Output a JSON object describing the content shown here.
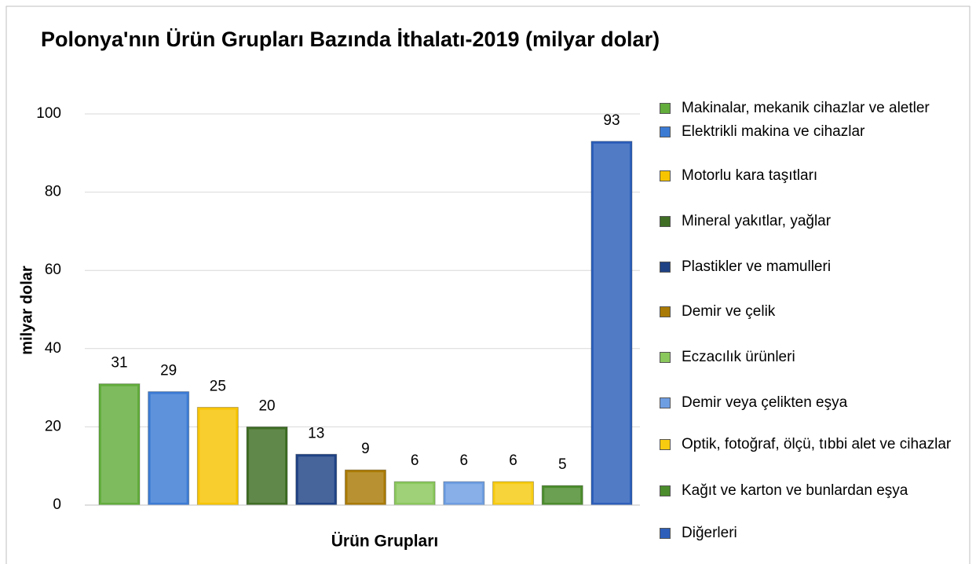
{
  "chart_data": {
    "type": "bar",
    "title": "Polonya'nın Ürün Grupları Bazında İthalatı-2019 (milyar dolar)",
    "x_label": "Ürün Grupları",
    "y_label": "milyar dolar",
    "categories": [
      "Makinalar, mekanik cihazlar ve aletler",
      "Elektrikli makina ve cihazlar",
      "Motorlu kara taşıtları",
      "Mineral yakıtlar, yağlar",
      "Plastikler ve mamulleri",
      "Demir ve çelik",
      "Eczacılık ürünleri",
      "Demir veya çelikten eşya",
      "Optik, fotoğraf, ölçü, tıbbi alet ve cihazlar",
      "Kağıt ve karton ve bunlardan eşya",
      "Diğerleri"
    ],
    "values": [
      31,
      29,
      25,
      20,
      13,
      9,
      6,
      6,
      6,
      5,
      93
    ],
    "colors": [
      "#62ad3c",
      "#3b7bd4",
      "#f7c400",
      "#3f6e24",
      "#1f4285",
      "#a97a05",
      "#8ac75c",
      "#6e9ee2",
      "#f7cb10",
      "#4b8c2c",
      "#2d5fba"
    ],
    "ylim": [
      0,
      100
    ],
    "yticks": [
      0,
      20,
      40,
      60,
      80,
      100
    ],
    "grid": true
  }
}
